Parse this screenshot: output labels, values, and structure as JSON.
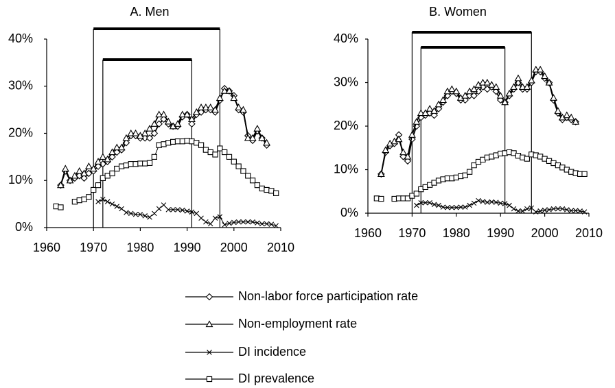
{
  "chart_data": [
    {
      "type": "line",
      "title": "A. Men",
      "xlim": [
        1960,
        2010
      ],
      "xticks": [
        1960,
        1970,
        1980,
        1990,
        2000,
        2010
      ],
      "ylim": [
        0,
        40
      ],
      "yticks": [
        {
          "value": 0,
          "label": "0%"
        },
        {
          "value": 10,
          "label": "10%"
        },
        {
          "value": 20,
          "label": "20%"
        },
        {
          "value": 30,
          "label": "30%"
        },
        {
          "value": 40,
          "label": "40%"
        }
      ],
      "periods": [
        [
          1970,
          1997
        ],
        [
          1972,
          1991
        ]
      ],
      "series": [
        {
          "name": "Non-labor force participation rate",
          "marker": "diamond",
          "color": "#000000",
          "x": [
            1963,
            1964,
            1965,
            1966,
            1967,
            1968,
            1969,
            1970,
            1971,
            1972,
            1973,
            1974,
            1975,
            1976,
            1977,
            1978,
            1979,
            1980,
            1981,
            1982,
            1983,
            1984,
            1985,
            1986,
            1987,
            1988,
            1989,
            1990,
            1991,
            1992,
            1993,
            1994,
            1995,
            1996,
            1997,
            1998,
            1999,
            2000,
            2001,
            2002,
            2003,
            2004,
            2005,
            2006,
            2007
          ],
          "values": [
            9,
            12,
            10,
            10.5,
            11,
            10.5,
            11.5,
            12,
            13,
            13.5,
            14,
            15,
            16,
            16.5,
            18,
            19.5,
            19.5,
            19,
            19,
            19,
            20,
            22,
            23,
            22,
            21.5,
            21.5,
            23.5,
            24,
            22,
            24,
            24.5,
            25,
            25,
            24.5,
            27,
            29.5,
            29,
            28,
            25,
            24.5,
            19.5,
            18.5,
            20.5,
            19,
            17.5
          ]
        },
        {
          "name": "Non-employment rate",
          "marker": "triangle",
          "color": "#000000",
          "x": [
            1963,
            1964,
            1965,
            1966,
            1967,
            1968,
            1969,
            1970,
            1971,
            1972,
            1973,
            1974,
            1975,
            1976,
            1977,
            1978,
            1979,
            1980,
            1981,
            1982,
            1983,
            1984,
            1985,
            1986,
            1987,
            1988,
            1989,
            1990,
            1991,
            1992,
            1993,
            1994,
            1995,
            1996,
            1997,
            1998,
            1999,
            2000,
            2001,
            2002,
            2003,
            2004,
            2005,
            2006,
            2007
          ],
          "values": [
            9,
            12.5,
            10,
            11,
            12,
            11.5,
            13,
            12.5,
            14,
            15,
            14.5,
            16,
            17,
            17,
            19,
            20,
            20,
            19.5,
            20,
            21,
            22,
            24,
            24,
            22.5,
            21.5,
            22,
            24,
            24,
            23,
            24.5,
            25.5,
            25.5,
            25.5,
            25,
            27.5,
            29,
            29,
            27.5,
            25.5,
            25,
            19,
            19,
            21,
            19,
            18
          ]
        },
        {
          "name": "DI incidence",
          "marker": "x",
          "color": "#000000",
          "x": [
            1971,
            1972,
            1973,
            1974,
            1975,
            1976,
            1977,
            1978,
            1979,
            1980,
            1981,
            1982,
            1983,
            1984,
            1985,
            1986,
            1987,
            1988,
            1989,
            1990,
            1991,
            1992,
            1993,
            1994,
            1995,
            1996,
            1997,
            1998,
            1999,
            2000,
            2001,
            2002,
            2003,
            2004,
            2005,
            2006,
            2007,
            2008,
            2009
          ],
          "values": [
            5.5,
            6,
            5.5,
            5,
            4.5,
            4,
            3.2,
            3,
            2.8,
            2.8,
            2.5,
            2.2,
            3,
            4,
            4.8,
            3.8,
            3.8,
            3.8,
            3.7,
            3.5,
            3.3,
            3,
            2,
            1.2,
            0.8,
            2,
            2.3,
            0.6,
            0.9,
            1.1,
            1.2,
            1.2,
            1.2,
            1.2,
            1,
            0.8,
            0.8,
            0.7,
            0.4
          ]
        },
        {
          "name": "DI prevalence",
          "marker": "square",
          "color": "#000000",
          "x": [
            1962,
            1963,
            1964,
            1965,
            1966,
            1967,
            1968,
            1969,
            1970,
            1971,
            1972,
            1973,
            1974,
            1975,
            1976,
            1977,
            1978,
            1979,
            1980,
            1981,
            1982,
            1983,
            1984,
            1985,
            1986,
            1987,
            1988,
            1989,
            1990,
            1991,
            1992,
            1993,
            1994,
            1995,
            1996,
            1997,
            1998,
            1999,
            2000,
            2001,
            2002,
            2003,
            2004,
            2005,
            2006,
            2007,
            2008,
            2009
          ],
          "values": [
            4.5,
            4.3,
            null,
            null,
            5.5,
            5.8,
            6,
            6.5,
            8,
            9,
            10.5,
            11,
            11.5,
            12.5,
            13,
            13.2,
            13.5,
            13.5,
            13.6,
            13.6,
            13.7,
            15,
            17.5,
            17.7,
            18,
            18.2,
            18.3,
            18.3,
            18.4,
            18.3,
            18,
            17.5,
            16.5,
            16,
            15.5,
            16.8,
            16,
            15,
            14,
            13,
            12,
            11,
            10,
            9,
            8.3,
            8,
            7.8,
            7.3
          ]
        }
      ]
    },
    {
      "type": "line",
      "title": "B. Women",
      "xlim": [
        1960,
        2010
      ],
      "xticks": [
        1960,
        1970,
        1980,
        1990,
        2000,
        2010
      ],
      "ylim": [
        0,
        40
      ],
      "yticks": [
        {
          "value": 0,
          "label": "0%"
        },
        {
          "value": 10,
          "label": "10%"
        },
        {
          "value": 20,
          "label": "20%"
        },
        {
          "value": 30,
          "label": "30%"
        },
        {
          "value": 40,
          "label": "40%"
        }
      ],
      "periods": [
        [
          1970,
          1997
        ],
        [
          1972,
          1991
        ]
      ],
      "series": [
        {
          "marker": "diamond",
          "color": "#000000",
          "x": [
            1963,
            1964,
            1965,
            1966,
            1967,
            1968,
            1969,
            1970,
            1971,
            1972,
            1973,
            1974,
            1975,
            1976,
            1977,
            1978,
            1979,
            1980,
            1981,
            1982,
            1983,
            1984,
            1985,
            1986,
            1987,
            1988,
            1989,
            1990,
            1991,
            1992,
            1993,
            1994,
            1995,
            1996,
            1997,
            1998,
            1999,
            2000,
            2001,
            2002,
            2003,
            2004,
            2005,
            2006,
            2007
          ],
          "values": [
            9,
            14,
            15.5,
            16,
            18,
            13,
            12,
            17,
            20,
            22,
            22.5,
            23,
            22.5,
            24,
            25.5,
            27,
            28,
            27.5,
            26,
            26,
            27,
            27,
            28,
            29,
            28.5,
            29,
            28,
            26,
            25.5,
            27,
            28.5,
            30,
            28.5,
            28.5,
            30,
            32.5,
            32.5,
            31,
            30,
            26,
            23,
            21.5,
            22,
            21.5,
            21
          ]
        },
        {
          "marker": "triangle",
          "color": "#000000",
          "x": [
            1963,
            1964,
            1965,
            1966,
            1967,
            1968,
            1969,
            1970,
            1971,
            1972,
            1973,
            1974,
            1975,
            1976,
            1977,
            1978,
            1979,
            1980,
            1981,
            1982,
            1983,
            1984,
            1985,
            1986,
            1987,
            1988,
            1989,
            1990,
            1991,
            1992,
            1993,
            1994,
            1995,
            1996,
            1997,
            1998,
            1999,
            2000,
            2001,
            2002,
            2003,
            2004,
            2005,
            2006,
            2007
          ],
          "values": [
            9,
            14.5,
            16,
            16.5,
            17,
            14,
            13,
            18,
            21,
            23,
            23,
            24,
            23.5,
            25,
            26,
            28,
            28.5,
            28,
            26.5,
            27,
            28,
            28.5,
            29.5,
            30,
            30,
            29.5,
            29,
            27,
            25.5,
            27.5,
            29,
            31,
            29,
            29,
            30.5,
            33,
            33,
            31.5,
            30,
            26.5,
            23.5,
            22,
            22.5,
            22,
            21
          ]
        },
        {
          "marker": "x",
          "color": "#000000",
          "x": [
            1971,
            1972,
            1973,
            1974,
            1975,
            1976,
            1977,
            1978,
            1979,
            1980,
            1981,
            1982,
            1983,
            1984,
            1985,
            1986,
            1987,
            1988,
            1989,
            1990,
            1991,
            1992,
            1993,
            1994,
            1995,
            1996,
            1997,
            1998,
            1999,
            2000,
            2001,
            2002,
            2003,
            2004,
            2005,
            2006,
            2007,
            2008,
            2009
          ],
          "values": [
            1.8,
            2.4,
            2.4,
            2.4,
            2,
            1.8,
            1.4,
            1.3,
            1.3,
            1.3,
            1.4,
            1.4,
            1.8,
            2.3,
            2.9,
            2.7,
            2.5,
            2.6,
            2.5,
            2.3,
            2.2,
            1.8,
            1,
            0.5,
            0.5,
            1,
            1.2,
            0.3,
            0.5,
            0.7,
            0.8,
            1,
            1,
            1,
            0.8,
            0.6,
            0.6,
            0.5,
            0.3
          ]
        },
        {
          "marker": "square",
          "color": "#000000",
          "x": [
            1962,
            1963,
            1964,
            1965,
            1966,
            1967,
            1968,
            1969,
            1970,
            1971,
            1972,
            1973,
            1974,
            1975,
            1976,
            1977,
            1978,
            1979,
            1980,
            1981,
            1982,
            1983,
            1984,
            1985,
            1986,
            1987,
            1988,
            1989,
            1990,
            1991,
            1992,
            1993,
            1994,
            1995,
            1996,
            1997,
            1998,
            1999,
            2000,
            2001,
            2002,
            2003,
            2004,
            2005,
            2006,
            2007,
            2008,
            2009
          ],
          "values": [
            3.4,
            3.3,
            null,
            null,
            3.3,
            3.4,
            3.4,
            3.4,
            4,
            4.5,
            5.5,
            6,
            6.5,
            7,
            7.5,
            7.8,
            8,
            8,
            8.2,
            8.5,
            8.7,
            9.5,
            11,
            11.8,
            12.3,
            12.8,
            13,
            13.3,
            13.7,
            13.8,
            14,
            13.8,
            13.2,
            12.8,
            12.5,
            13.5,
            13.3,
            13,
            12.5,
            12,
            11.5,
            11,
            10.5,
            10,
            9.5,
            9.2,
            9,
            9
          ]
        }
      ]
    }
  ]
}
